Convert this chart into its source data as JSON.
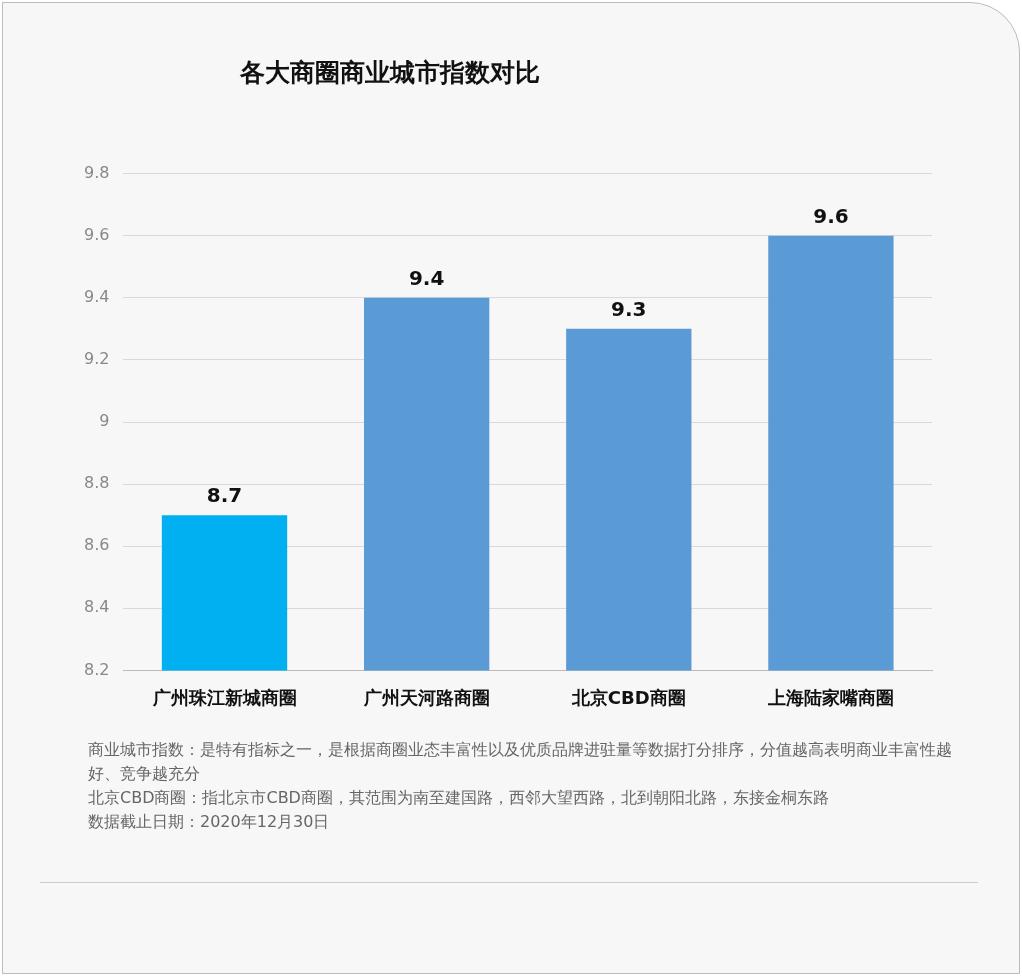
{
  "chart_data": {
    "type": "bar",
    "title": "各大商圈商业城市指数对比",
    "categories": [
      "广州珠江新城商圈",
      "广州天河路商圈",
      "北京CBD商圈",
      "上海陆家嘴商圈"
    ],
    "values": [
      8.7,
      9.4,
      9.3,
      9.6
    ],
    "colors": [
      "#00b0f0",
      "#5b9bd5",
      "#5b9bd5",
      "#5b9bd5"
    ],
    "ylim": [
      8.2,
      9.8
    ],
    "yticks": [
      8.2,
      8.4,
      8.6,
      8.8,
      9,
      9.2,
      9.4,
      9.6,
      9.8
    ],
    "grid": "y",
    "data_labels": true,
    "annotations": [
      "商业城市指数：是特有指标之一，是根据商圈业态丰富性以及优质品牌进驻量等数据打分排序，分值越高表明商业丰富性越好、竞争越充分",
      "北京CBD商圈：指北京市CBD商圈，其范围为南至建国路，西邻大望西路，北到朝阳北路，东接金桐东路",
      "数据截止日期：2020年12月30日"
    ]
  }
}
